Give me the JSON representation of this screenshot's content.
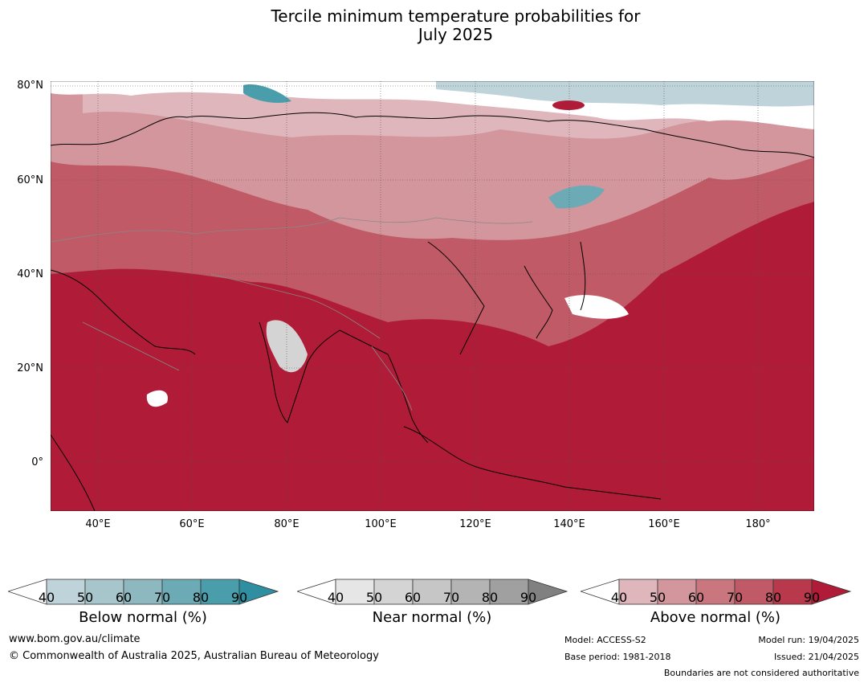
{
  "title_line1": "Tercile minimum temperature probabilities for",
  "title_line2": "July 2025",
  "map": {
    "lat_labels": [
      "80°N",
      "60°N",
      "40°N",
      "20°N",
      "0°"
    ],
    "lon_labels": [
      "40°E",
      "60°E",
      "80°E",
      "100°E",
      "120°E",
      "140°E",
      "160°E",
      "180°"
    ],
    "lon_range": [
      30,
      191
    ],
    "lat_range": [
      -10,
      81
    ],
    "dominant_category": "Above normal",
    "regions": [
      {
        "area": "Arctic coast / Barents Sea",
        "category": "Below normal",
        "probability": "50-70%"
      },
      {
        "area": "Sea of Okhotsk",
        "category": "Below normal",
        "probability": "60-80%"
      },
      {
        "area": "Central India",
        "category": "Near normal",
        "probability": "40-50%"
      },
      {
        "area": "Northern Siberia",
        "category": "Above normal",
        "probability": "40-60%"
      },
      {
        "area": "Indian Ocean / Maritime Continent",
        "category": "Above normal",
        "probability": "90%"
      },
      {
        "area": "North-west Pacific",
        "category": "Above normal",
        "probability": "70-90%"
      }
    ]
  },
  "colorbars": [
    {
      "label": "Below normal (%)",
      "ticks": [
        "40",
        "50",
        "60",
        "70",
        "80",
        "90"
      ],
      "colors": [
        "#bfd3da",
        "#a6c6cc",
        "#8db8c0",
        "#6cabb6",
        "#4a9dab",
        "#2f8ea0"
      ]
    },
    {
      "label": "Near normal (%)",
      "ticks": [
        "40",
        "50",
        "60",
        "70",
        "80",
        "90"
      ],
      "colors": [
        "#e6e6e6",
        "#d4d4d4",
        "#c6c6c6",
        "#b4b4b4",
        "#a0a0a0",
        "#808080"
      ]
    },
    {
      "label": "Above normal (%)",
      "ticks": [
        "40",
        "50",
        "60",
        "70",
        "80",
        "90"
      ],
      "colors": [
        "#dfb6bc",
        "#d4969d",
        "#c9767f",
        "#c05a66",
        "#b8394c",
        "#b01b37"
      ]
    }
  ],
  "footer": {
    "website": "www.bom.gov.au/climate",
    "copyright": "© Commonwealth of Australia 2025, Australian Bureau of Meteorology",
    "model": "Model: ACCESS-S2",
    "base_period": "Base period: 1981-2018",
    "model_run": "Model run: 19/04/2025",
    "issued": "Issued: 21/04/2025",
    "disclaimer": "Boundaries are not considered authoritative"
  }
}
